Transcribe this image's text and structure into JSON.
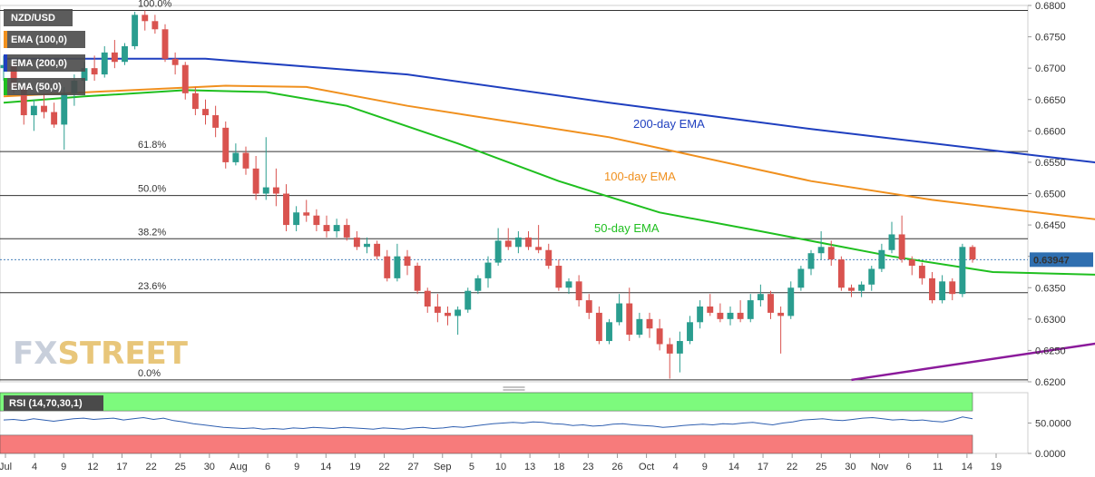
{
  "chart_data": {
    "type": "candlestick",
    "symbol": "NZD/USD",
    "legend": [
      "EMA (100,0)",
      "EMA (200,0)",
      "EMA (50,0)"
    ],
    "ylim": [
      0.62,
      0.68
    ],
    "y_ticks": [
      "0.6800",
      "0.6750",
      "0.6700",
      "0.6650",
      "0.6600",
      "0.6550",
      "0.6500",
      "0.6450",
      "0.6400",
      "0.6350",
      "0.6300",
      "0.6250",
      "0.6200"
    ],
    "x_ticks": [
      "Jul",
      "4",
      "9",
      "12",
      "17",
      "22",
      "25",
      "30",
      "Aug",
      "6",
      "9",
      "14",
      "19",
      "22",
      "27",
      "Sep",
      "5",
      "10",
      "13",
      "18",
      "23",
      "26",
      "Oct",
      "4",
      "9",
      "14",
      "17",
      "22",
      "25",
      "30",
      "Nov",
      "6",
      "11",
      "14",
      "19"
    ],
    "current_price": "0.63947",
    "fibonacci": [
      {
        "label": "100.0%",
        "value": 0.6792
      },
      {
        "label": "61.8%",
        "value": 0.6567
      },
      {
        "label": "50.0%",
        "value": 0.6497
      },
      {
        "label": "38.2%",
        "value": 0.6428
      },
      {
        "label": "23.6%",
        "value": 0.6342
      },
      {
        "label": "0.0%",
        "value": 0.6203
      }
    ],
    "ema_labels": {
      "ema200": "200-day EMA",
      "ema100": "100-day EMA",
      "ema50": "50-day EMA"
    },
    "colors": {
      "up": "#2a9d8f",
      "down": "#d9534f",
      "ema200": "#1f3fbf",
      "ema100": "#f0901e",
      "ema50": "#1fbf1f",
      "trendline": "#8b1a9b",
      "price_label_bg": "#2f6fb0"
    },
    "candles": [
      [
        0.67,
        0.672,
        0.668,
        0.6705
      ],
      [
        0.6705,
        0.6712,
        0.666,
        0.6668
      ],
      [
        0.6668,
        0.6675,
        0.661,
        0.6625
      ],
      [
        0.6625,
        0.665,
        0.66,
        0.664
      ],
      [
        0.664,
        0.666,
        0.662,
        0.663
      ],
      [
        0.663,
        0.6645,
        0.6605,
        0.661
      ],
      [
        0.661,
        0.667,
        0.657,
        0.666
      ],
      [
        0.666,
        0.669,
        0.664,
        0.668
      ],
      [
        0.668,
        0.671,
        0.6665,
        0.67
      ],
      [
        0.67,
        0.672,
        0.668,
        0.669
      ],
      [
        0.669,
        0.6735,
        0.6685,
        0.6725
      ],
      [
        0.6725,
        0.6745,
        0.67,
        0.671
      ],
      [
        0.671,
        0.674,
        0.6705,
        0.6735
      ],
      [
        0.6735,
        0.679,
        0.673,
        0.6785
      ],
      [
        0.6785,
        0.6792,
        0.676,
        0.6775
      ],
      [
        0.6775,
        0.6785,
        0.6755,
        0.6762
      ],
      [
        0.6762,
        0.677,
        0.671,
        0.6715
      ],
      [
        0.6715,
        0.6725,
        0.669,
        0.6705
      ],
      [
        0.6705,
        0.671,
        0.665,
        0.666
      ],
      [
        0.666,
        0.667,
        0.6625,
        0.6635
      ],
      [
        0.6635,
        0.665,
        0.661,
        0.6625
      ],
      [
        0.6625,
        0.664,
        0.659,
        0.6605
      ],
      [
        0.6605,
        0.6615,
        0.654,
        0.655
      ],
      [
        0.655,
        0.658,
        0.6545,
        0.6565
      ],
      [
        0.6565,
        0.6575,
        0.653,
        0.654
      ],
      [
        0.654,
        0.656,
        0.649,
        0.65
      ],
      [
        0.65,
        0.659,
        0.649,
        0.651
      ],
      [
        0.651,
        0.654,
        0.648,
        0.65
      ],
      [
        0.65,
        0.6515,
        0.644,
        0.645
      ],
      [
        0.645,
        0.648,
        0.644,
        0.647
      ],
      [
        0.647,
        0.649,
        0.6455,
        0.6465
      ],
      [
        0.6465,
        0.6475,
        0.644,
        0.645
      ],
      [
        0.645,
        0.6465,
        0.643,
        0.644
      ],
      [
        0.644,
        0.646,
        0.643,
        0.645
      ],
      [
        0.645,
        0.646,
        0.6425,
        0.643
      ],
      [
        0.643,
        0.644,
        0.641,
        0.6415
      ],
      [
        0.6415,
        0.643,
        0.6405,
        0.642
      ],
      [
        0.642,
        0.6425,
        0.6395,
        0.64
      ],
      [
        0.64,
        0.641,
        0.636,
        0.6365
      ],
      [
        0.6365,
        0.642,
        0.636,
        0.64
      ],
      [
        0.64,
        0.641,
        0.637,
        0.6385
      ],
      [
        0.6385,
        0.639,
        0.634,
        0.6345
      ],
      [
        0.6345,
        0.635,
        0.631,
        0.632
      ],
      [
        0.632,
        0.634,
        0.6295,
        0.631
      ],
      [
        0.631,
        0.632,
        0.629,
        0.6305
      ],
      [
        0.6305,
        0.632,
        0.6275,
        0.6315
      ],
      [
        0.6315,
        0.635,
        0.631,
        0.6345
      ],
      [
        0.6345,
        0.637,
        0.634,
        0.6365
      ],
      [
        0.6365,
        0.64,
        0.635,
        0.639
      ],
      [
        0.639,
        0.6445,
        0.6385,
        0.6425
      ],
      [
        0.6425,
        0.6445,
        0.641,
        0.6415
      ],
      [
        0.6415,
        0.644,
        0.6405,
        0.643
      ],
      [
        0.643,
        0.644,
        0.641,
        0.6415
      ],
      [
        0.6415,
        0.645,
        0.6405,
        0.641
      ],
      [
        0.641,
        0.642,
        0.638,
        0.6385
      ],
      [
        0.6385,
        0.6395,
        0.6345,
        0.635
      ],
      [
        0.635,
        0.6365,
        0.634,
        0.636
      ],
      [
        0.636,
        0.637,
        0.632,
        0.633
      ],
      [
        0.633,
        0.634,
        0.63,
        0.631
      ],
      [
        0.631,
        0.632,
        0.626,
        0.6265
      ],
      [
        0.6265,
        0.63,
        0.626,
        0.6295
      ],
      [
        0.6295,
        0.634,
        0.629,
        0.6325
      ],
      [
        0.6325,
        0.635,
        0.6265,
        0.6275
      ],
      [
        0.6275,
        0.631,
        0.627,
        0.63
      ],
      [
        0.63,
        0.631,
        0.627,
        0.6285
      ],
      [
        0.6285,
        0.63,
        0.625,
        0.626
      ],
      [
        0.626,
        0.627,
        0.6205,
        0.6245
      ],
      [
        0.6245,
        0.628,
        0.6215,
        0.6265
      ],
      [
        0.6265,
        0.6305,
        0.626,
        0.6295
      ],
      [
        0.6295,
        0.633,
        0.6285,
        0.632
      ],
      [
        0.632,
        0.634,
        0.6305,
        0.631
      ],
      [
        0.631,
        0.6325,
        0.6295,
        0.63
      ],
      [
        0.63,
        0.632,
        0.629,
        0.631
      ],
      [
        0.631,
        0.633,
        0.6295,
        0.63
      ],
      [
        0.63,
        0.634,
        0.6295,
        0.633
      ],
      [
        0.633,
        0.6355,
        0.632,
        0.634
      ],
      [
        0.634,
        0.6345,
        0.63,
        0.631
      ],
      [
        0.631,
        0.632,
        0.6245,
        0.6305
      ],
      [
        0.6305,
        0.636,
        0.63,
        0.635
      ],
      [
        0.635,
        0.6385,
        0.6345,
        0.638
      ],
      [
        0.638,
        0.641,
        0.637,
        0.6405
      ],
      [
        0.6405,
        0.644,
        0.6395,
        0.6415
      ],
      [
        0.6415,
        0.6425,
        0.6385,
        0.6395
      ],
      [
        0.6395,
        0.64,
        0.6345,
        0.635
      ],
      [
        0.635,
        0.6355,
        0.6335,
        0.6345
      ],
      [
        0.6345,
        0.636,
        0.6335,
        0.6355
      ],
      [
        0.6355,
        0.6385,
        0.6345,
        0.638
      ],
      [
        0.638,
        0.642,
        0.6375,
        0.641
      ],
      [
        0.641,
        0.6455,
        0.6405,
        0.6435
      ],
      [
        0.6435,
        0.6465,
        0.639,
        0.6395
      ],
      [
        0.6395,
        0.64,
        0.637,
        0.6385
      ],
      [
        0.6385,
        0.639,
        0.6355,
        0.6365
      ],
      [
        0.6365,
        0.6375,
        0.6325,
        0.633
      ],
      [
        0.633,
        0.637,
        0.6325,
        0.636
      ],
      [
        0.636,
        0.6365,
        0.633,
        0.634
      ],
      [
        0.634,
        0.642,
        0.6335,
        0.6415
      ],
      [
        0.6415,
        0.6418,
        0.639,
        0.6395
      ]
    ],
    "ema200": [
      [
        0,
        0.6715
      ],
      [
        20,
        0.6715
      ],
      [
        40,
        0.669
      ],
      [
        60,
        0.6645
      ],
      [
        80,
        0.6603
      ],
      [
        100,
        0.6565
      ],
      [
        108,
        0.655
      ],
      [
        118,
        0.653
      ],
      [
        122,
        0.6528
      ]
    ],
    "ema100": [
      [
        0,
        0.6655
      ],
      [
        10,
        0.6663
      ],
      [
        22,
        0.6672
      ],
      [
        30,
        0.667
      ],
      [
        40,
        0.664
      ],
      [
        60,
        0.659
      ],
      [
        80,
        0.652
      ],
      [
        92,
        0.649
      ],
      [
        105,
        0.6465
      ],
      [
        112,
        0.6452
      ],
      [
        118,
        0.644
      ],
      [
        122,
        0.6428
      ]
    ],
    "ema50": [
      [
        0,
        0.6645
      ],
      [
        8,
        0.6655
      ],
      [
        18,
        0.6665
      ],
      [
        26,
        0.6662
      ],
      [
        34,
        0.664
      ],
      [
        45,
        0.658
      ],
      [
        55,
        0.652
      ],
      [
        65,
        0.647
      ],
      [
        75,
        0.644
      ],
      [
        88,
        0.64
      ],
      [
        98,
        0.6375
      ],
      [
        110,
        0.637
      ],
      [
        118,
        0.638
      ],
      [
        122,
        0.6375
      ]
    ],
    "trendline": [
      [
        84,
        0.6203
      ],
      [
        130,
        0.6313
      ]
    ],
    "rsi": {
      "label": "RSI (14,70,30,1)",
      "ylim": [
        0,
        100
      ],
      "y_ticks": [
        "50.0000",
        "0.0000"
      ],
      "overbought": 70,
      "oversold": 30,
      "values": [
        55,
        56,
        54,
        57,
        55,
        53,
        55,
        57,
        58,
        56,
        57,
        58,
        55,
        57,
        59,
        56,
        58,
        54,
        52,
        49,
        47,
        45,
        43,
        42,
        41,
        42,
        40,
        41,
        40,
        42,
        41,
        43,
        42,
        41,
        43,
        42,
        41,
        40,
        42,
        41,
        40,
        42,
        43,
        41,
        42,
        44,
        43,
        45,
        47,
        49,
        50,
        51,
        50,
        52,
        51,
        49,
        48,
        46,
        47,
        45,
        46,
        48,
        49,
        47,
        46,
        45,
        43,
        44,
        46,
        47,
        48,
        47,
        49,
        48,
        50,
        51,
        49,
        47,
        50,
        52,
        55,
        56,
        57,
        55,
        54,
        56,
        58,
        59,
        57,
        55,
        56,
        54,
        55,
        53,
        52,
        55,
        60,
        57
      ]
    },
    "watermark": "FXSTREET"
  }
}
